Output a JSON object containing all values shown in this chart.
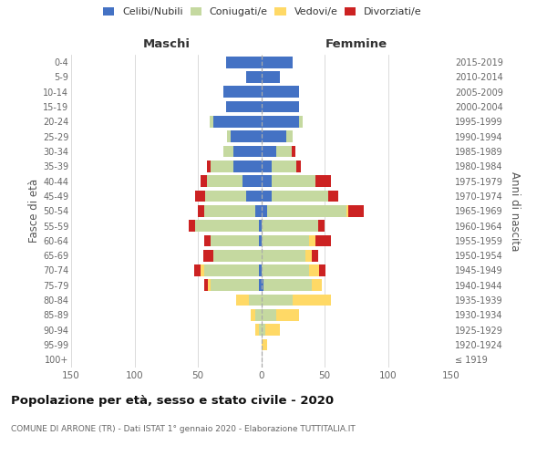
{
  "age_groups": [
    "100+",
    "95-99",
    "90-94",
    "85-89",
    "80-84",
    "75-79",
    "70-74",
    "65-69",
    "60-64",
    "55-59",
    "50-54",
    "45-49",
    "40-44",
    "35-39",
    "30-34",
    "25-29",
    "20-24",
    "15-19",
    "10-14",
    "5-9",
    "0-4"
  ],
  "birth_years": [
    "≤ 1919",
    "1920-1924",
    "1925-1929",
    "1930-1934",
    "1935-1939",
    "1940-1944",
    "1945-1949",
    "1950-1954",
    "1955-1959",
    "1960-1964",
    "1965-1969",
    "1970-1974",
    "1975-1979",
    "1980-1984",
    "1985-1989",
    "1990-1994",
    "1995-1999",
    "2000-2004",
    "2005-2009",
    "2010-2014",
    "2015-2019"
  ],
  "maschi": {
    "celibi": [
      0,
      0,
      0,
      0,
      0,
      2,
      2,
      0,
      2,
      2,
      5,
      12,
      15,
      22,
      22,
      24,
      38,
      28,
      30,
      12,
      28
    ],
    "coniugati": [
      0,
      0,
      2,
      5,
      10,
      38,
      43,
      38,
      38,
      50,
      40,
      32,
      28,
      18,
      8,
      3,
      3,
      0,
      0,
      0,
      0
    ],
    "vedovi": [
      0,
      0,
      3,
      3,
      10,
      2,
      3,
      0,
      0,
      0,
      0,
      0,
      0,
      0,
      0,
      0,
      0,
      0,
      0,
      0,
      0
    ],
    "divorziati": [
      0,
      0,
      0,
      0,
      0,
      3,
      5,
      8,
      5,
      5,
      5,
      8,
      5,
      3,
      0,
      0,
      0,
      0,
      0,
      0,
      0
    ]
  },
  "femmine": {
    "nubili": [
      0,
      0,
      0,
      0,
      0,
      2,
      0,
      0,
      0,
      0,
      5,
      8,
      8,
      8,
      12,
      20,
      30,
      30,
      30,
      15,
      25
    ],
    "coniugate": [
      0,
      0,
      3,
      12,
      25,
      38,
      38,
      35,
      38,
      45,
      62,
      45,
      35,
      20,
      12,
      5,
      3,
      0,
      0,
      0,
      0
    ],
    "vedove": [
      0,
      5,
      12,
      18,
      30,
      8,
      8,
      5,
      5,
      0,
      2,
      0,
      0,
      0,
      0,
      0,
      0,
      0,
      0,
      0,
      0
    ],
    "divorziate": [
      0,
      0,
      0,
      0,
      0,
      0,
      5,
      5,
      12,
      5,
      12,
      8,
      12,
      3,
      3,
      0,
      0,
      0,
      0,
      0,
      0
    ]
  },
  "colors": {
    "celibi_nubili": "#4472C4",
    "coniugati": "#C5D9A0",
    "vedovi": "#FFD966",
    "divorziati": "#CC2222"
  },
  "xlim": 150,
  "title": "Popolazione per età, sesso e stato civile - 2020",
  "subtitle": "COMUNE DI ARRONE (TR) - Dati ISTAT 1° gennaio 2020 - Elaborazione TUTTITALIA.IT",
  "ylabel_left": "Fasce di età",
  "ylabel_right": "Anni di nascita",
  "header_maschi": "Maschi",
  "header_femmine": "Femmine",
  "legend_labels": [
    "Celibi/Nubili",
    "Coniugati/e",
    "Vedovi/e",
    "Divorziati/e"
  ]
}
